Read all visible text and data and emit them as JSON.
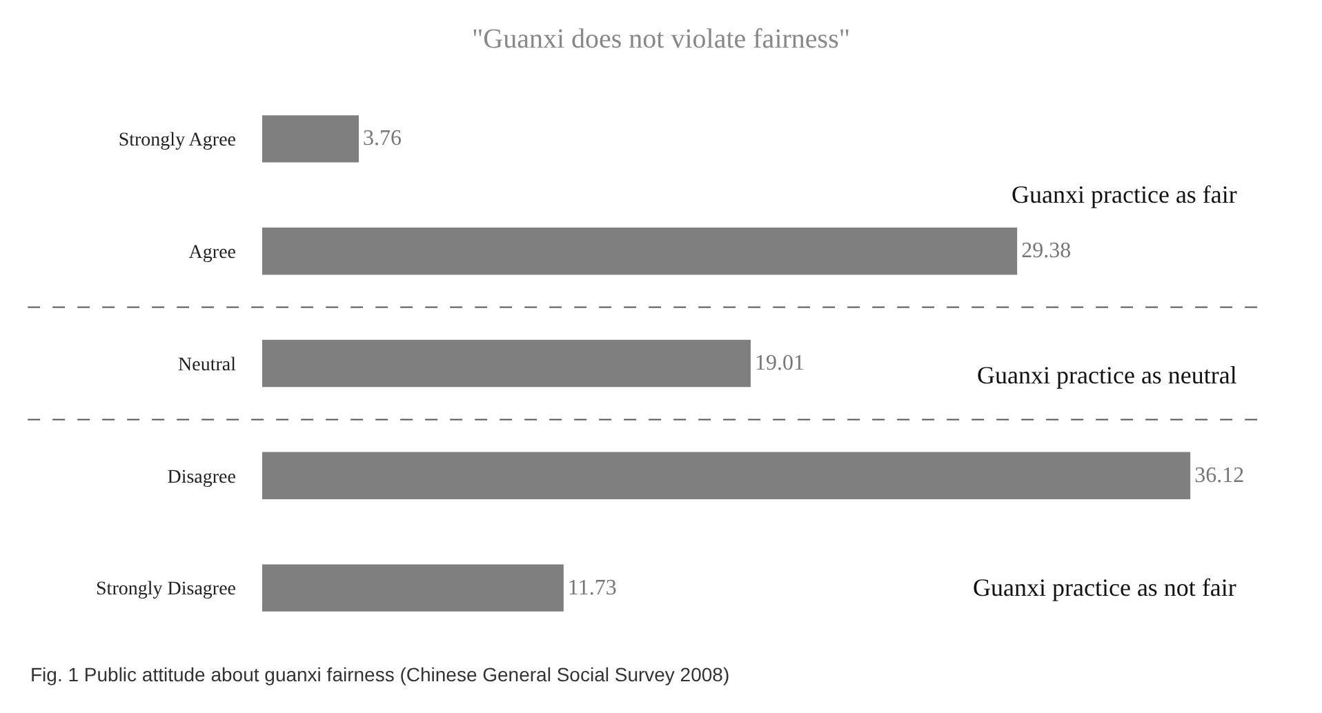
{
  "chart_data": {
    "type": "bar",
    "orientation": "horizontal",
    "title": "\"Guanxi does not violate fairness\"",
    "categories": [
      "Strongly Agree",
      "Agree",
      "Neutral",
      "Disagree",
      "Strongly Disagree"
    ],
    "values": [
      3.76,
      29.38,
      19.01,
      36.12,
      11.73
    ],
    "color": "#7f7f7f",
    "data_labels": true,
    "tick_labels": "y",
    "annotations": [
      "Guanxi practice as fair",
      "Guanxi practice as neutral",
      "Guanxi practice as not fair",
      "Fig. 1 Public attitude about guanxi fairness (Chinese General Social Survey 2008)"
    ]
  }
}
